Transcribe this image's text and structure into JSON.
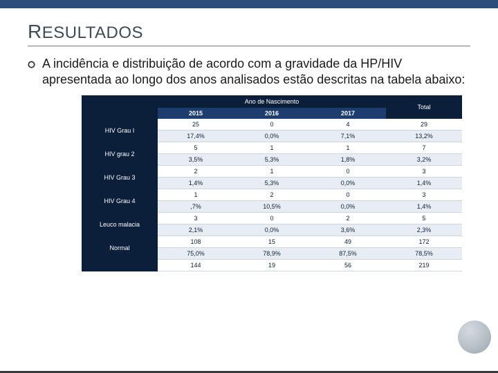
{
  "colors": {
    "topbar": "#2a4d7a",
    "title_text": "#404b56",
    "header_dark": "#0b1f3a",
    "header_year": "#1c3d6e",
    "cell_text": "#0b1f3a",
    "cell_bg": "#ffffff",
    "cell_alt_bg": "#e8edf4",
    "cell_border": "#cfd6e0",
    "bottombar": "#38383a"
  },
  "typography": {
    "title_fontsize": 24,
    "title_cap_fontsize": 28,
    "paragraph_fontsize": 18,
    "table_fontsize": 9,
    "font_family": "Arial"
  },
  "title": {
    "cap": "R",
    "rest": "ESULTADOS"
  },
  "paragraph": "A incidência e distribuição de acordo com a gravidade da HP/HIV apresentada ao longo dos anos analisados estão descritas na tabela abaixo:",
  "table": {
    "super_header": "Ano de Nascimento",
    "total_header": "Total",
    "years": [
      "2015",
      "2016",
      "2017"
    ],
    "row_label_width": 110,
    "rows": [
      {
        "label": "HIV Grau I",
        "counts": [
          "25",
          "0",
          "4",
          "29"
        ],
        "percents": [
          "17,4%",
          "0,0%",
          "7,1%",
          "13,2%"
        ]
      },
      {
        "label": "HIV grau 2",
        "counts": [
          "5",
          "1",
          "1",
          "7"
        ],
        "percents": [
          "3,5%",
          "5,3%",
          "1,8%",
          "3,2%"
        ]
      },
      {
        "label": "HIV Grau 3",
        "counts": [
          "2",
          "1",
          "0",
          "3"
        ],
        "percents": [
          "1,4%",
          "5,3%",
          "0,0%",
          "1,4%"
        ]
      },
      {
        "label": "HIV Grau 4",
        "counts": [
          "1",
          "2",
          "0",
          "3"
        ],
        "percents": [
          ",7%",
          "10,5%",
          "0,0%",
          "1,4%"
        ]
      },
      {
        "label": "Leuco malacia",
        "counts": [
          "3",
          "0",
          "2",
          "5"
        ],
        "percents": [
          "2,1%",
          "0,0%",
          "3,6%",
          "2,3%"
        ]
      },
      {
        "label": "Normal",
        "counts": [
          "108",
          "15",
          "49",
          "172"
        ],
        "percents": [
          "75,0%",
          "78,9%",
          "87,5%",
          "78,5%"
        ]
      }
    ],
    "footer_totals": [
      "144",
      "19",
      "56",
      "219"
    ]
  }
}
